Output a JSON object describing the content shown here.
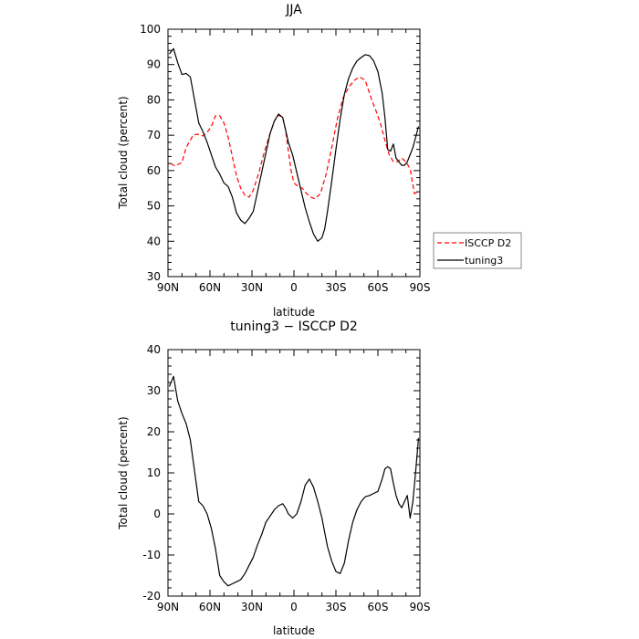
{
  "chart_data": [
    {
      "type": "line",
      "title": "JJA",
      "xlabel": "latitude",
      "ylabel": "Total cloud (percent)",
      "xlim": [
        90,
        -90
      ],
      "ylim": [
        30,
        100
      ],
      "xticks": [
        "90N",
        "60N",
        "30N",
        "0",
        "30S",
        "60S",
        "90S"
      ],
      "yticks": [
        "30",
        "40",
        "50",
        "60",
        "70",
        "80",
        "90",
        "100"
      ],
      "legend_position": "right",
      "series": [
        {
          "name": "ISCCP D2",
          "color": "#ff0000",
          "dash": true,
          "x": [
            88,
            85,
            80,
            77,
            72,
            69,
            65,
            62,
            59,
            56,
            53,
            50,
            47,
            44,
            41,
            38,
            35,
            32,
            29,
            25,
            21,
            17,
            14,
            11,
            8,
            6,
            4,
            2,
            0,
            -3,
            -6,
            -9,
            -12,
            -15,
            -19,
            -23,
            -27,
            -31,
            -35,
            -39,
            -43,
            -47,
            -51,
            -53,
            -56,
            -59,
            -62,
            -65,
            -68,
            -71,
            -74,
            -77,
            -80,
            -83,
            -86,
            -88
          ],
          "y": [
            62,
            61.3,
            62.3,
            66.5,
            70,
            70.3,
            69.8,
            70.8,
            72.5,
            75.5,
            75.5,
            73.5,
            69.5,
            64,
            58.5,
            55,
            53,
            52.5,
            54.5,
            59.5,
            65.5,
            70.5,
            74,
            75.7,
            75,
            71.5,
            65.5,
            60,
            56.5,
            55.5,
            55,
            53.5,
            52.5,
            52,
            53.5,
            59,
            66.5,
            74.5,
            80.5,
            83.5,
            85.5,
            86.5,
            85.5,
            83,
            79.5,
            76.5,
            73,
            68.5,
            64.5,
            62.5,
            62.5,
            63.5,
            62.5,
            60.5,
            53.5,
            53.8
          ]
        },
        {
          "name": "tuning3",
          "color": "#000000",
          "dash": false,
          "x": [
            89,
            86,
            83,
            80,
            77,
            74,
            71,
            68,
            65,
            62,
            59,
            56,
            53,
            50,
            47,
            44,
            41,
            38,
            35,
            32,
            29,
            26,
            23,
            20,
            17,
            14,
            11,
            8,
            6,
            4,
            1,
            -2,
            -5,
            -8,
            -11,
            -14,
            -17,
            -20,
            -22,
            -24,
            -27,
            -30,
            -33,
            -36,
            -39,
            -42,
            -45,
            -48,
            -51,
            -54,
            -57,
            -60,
            -63,
            -65,
            -67,
            -69,
            -71,
            -73,
            -75,
            -77,
            -79,
            -81,
            -83,
            -85,
            -87,
            -89
          ],
          "y": [
            93,
            94.5,
            90.5,
            87.2,
            87.5,
            86.5,
            80,
            73.5,
            71,
            68,
            64.5,
            61,
            59,
            56.5,
            55.5,
            52.5,
            48,
            46,
            45,
            46.5,
            48.5,
            54,
            59.5,
            65,
            70.5,
            74,
            76,
            75,
            71.5,
            68,
            64.5,
            59.5,
            54.5,
            49.5,
            45.5,
            42,
            40,
            41,
            43.5,
            48.5,
            57,
            66,
            74.5,
            81.5,
            86,
            89,
            91,
            92,
            92.8,
            92.5,
            91,
            88,
            82,
            75,
            66,
            65.5,
            67.5,
            63.5,
            62.5,
            61.5,
            61.5,
            62.5,
            64.5,
            66.5,
            69.5,
            72.5
          ]
        }
      ]
    },
    {
      "type": "line",
      "title": "tuning3 − ISCCP D2",
      "xlabel": "latitude",
      "ylabel": "Total cloud (percent)",
      "xlim": [
        90,
        -90
      ],
      "ylim": [
        -20,
        40
      ],
      "xticks": [
        "90N",
        "60N",
        "30N",
        "0",
        "30S",
        "60S",
        "90S"
      ],
      "yticks": [
        "-20",
        "-10",
        "0",
        "10",
        "20",
        "30",
        "40"
      ],
      "series": [
        {
          "color": "#000000",
          "dash": false,
          "x": [
            89,
            86,
            83,
            80,
            77,
            74,
            71,
            68,
            65,
            62,
            59,
            56,
            53,
            50,
            47,
            44,
            41,
            38,
            35,
            32,
            29,
            26,
            23,
            20,
            17,
            14,
            11,
            8,
            6,
            4,
            1,
            -2,
            -5,
            -8,
            -11,
            -14,
            -17,
            -20,
            -22,
            -24,
            -27,
            -30,
            -33,
            -36,
            -39,
            -42,
            -45,
            -48,
            -51,
            -54,
            -57,
            -60,
            -63,
            -65,
            -67,
            -69,
            -71,
            -73,
            -75,
            -77,
            -79,
            -81,
            -83,
            -85,
            -87,
            -89
          ],
          "y": [
            31,
            33.5,
            27.5,
            24.5,
            22,
            18,
            10.5,
            3,
            2,
            0,
            -3.5,
            -8.5,
            -15,
            -16.5,
            -17.5,
            -17,
            -16.5,
            -16,
            -14.5,
            -12.5,
            -10.5,
            -7.5,
            -5,
            -2,
            -0.5,
            1,
            2,
            2.5,
            1.5,
            0,
            -1,
            0,
            3,
            7,
            8.5,
            6.5,
            3,
            -1,
            -4.5,
            -8,
            -11.5,
            -14,
            -14.5,
            -12,
            -6.5,
            -2,
            1,
            3,
            4.2,
            4.5,
            5,
            5.5,
            8.5,
            11,
            11.5,
            11,
            7.5,
            4.5,
            2.5,
            1.5,
            3,
            4.5,
            -1,
            3,
            10.5,
            18.5
          ]
        }
      ]
    }
  ]
}
